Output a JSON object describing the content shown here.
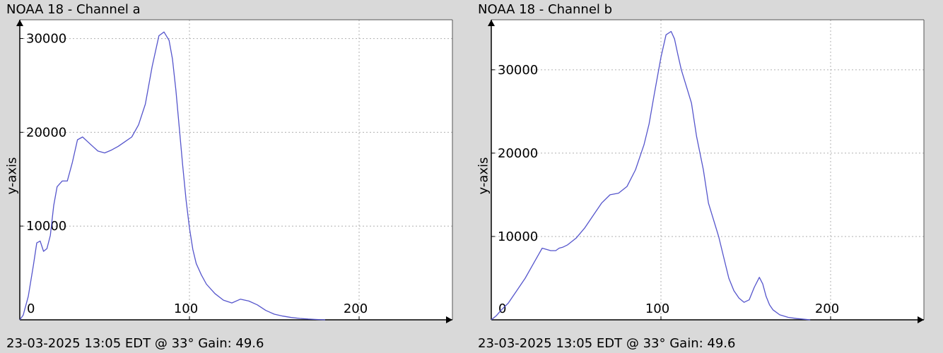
{
  "chart_data": [
    {
      "type": "line",
      "title": "NOAA 18 - Channel a",
      "ylabel": "y-axis",
      "xlabel": "",
      "footer": "23-03-2025 13:05 EDT @ 33° Gain: 49.6",
      "xlim": [
        0,
        255
      ],
      "ylim": [
        0,
        32000
      ],
      "xticks": [
        0,
        100,
        200
      ],
      "yticks": [
        10000,
        20000,
        30000
      ],
      "grid": true,
      "line_color": "#5555cc",
      "x": [
        0,
        2,
        5,
        8,
        10,
        12,
        14,
        16,
        18,
        20,
        22,
        25,
        28,
        31,
        34,
        37,
        40,
        43,
        46,
        50,
        54,
        58,
        62,
        66,
        70,
        74,
        78,
        82,
        85,
        88,
        90,
        92,
        94,
        96,
        98,
        100,
        102,
        104,
        107,
        110,
        115,
        120,
        125,
        130,
        135,
        140,
        145,
        150,
        155,
        160,
        165,
        170,
        175,
        180
      ],
      "series": [
        {
          "values": [
            0,
            500,
            2500,
            5800,
            8200,
            8400,
            7300,
            7600,
            9000,
            12200,
            14200,
            14800,
            14800,
            16800,
            19200,
            19500,
            19000,
            18500,
            18000,
            17800,
            18100,
            18500,
            19000,
            19500,
            20800,
            23000,
            27000,
            30300,
            30700,
            29800,
            27800,
            24500,
            20500,
            16500,
            12800,
            9800,
            7500,
            6000,
            4800,
            3800,
            2800,
            2100,
            1800,
            2200,
            2000,
            1600,
            1000,
            600,
            400,
            250,
            150,
            80,
            40,
            0
          ]
        }
      ]
    },
    {
      "type": "line",
      "title": "NOAA 18 - Channel b",
      "ylabel": "y-axis",
      "xlabel": "",
      "footer": "23-03-2025 13:05 EDT @ 33° Gain: 49.6",
      "xlim": [
        0,
        255
      ],
      "ylim": [
        0,
        36000
      ],
      "xticks": [
        0,
        100,
        200
      ],
      "yticks": [
        10000,
        20000,
        30000
      ],
      "grid": true,
      "line_color": "#5555cc",
      "x": [
        0,
        3,
        6,
        10,
        15,
        20,
        25,
        30,
        35,
        38,
        40,
        42,
        45,
        50,
        55,
        60,
        65,
        70,
        75,
        80,
        85,
        88,
        90,
        93,
        96,
        100,
        103,
        106,
        108,
        110,
        112,
        115,
        118,
        121,
        125,
        128,
        131,
        134,
        137,
        140,
        143,
        146,
        149,
        152,
        155,
        158,
        160,
        162,
        164,
        166,
        170,
        175,
        180,
        185,
        188
      ],
      "series": [
        {
          "values": [
            0,
            500,
            1200,
            2000,
            3500,
            5000,
            6800,
            8600,
            8300,
            8300,
            8600,
            8700,
            9000,
            9800,
            11000,
            12500,
            14000,
            15000,
            15200,
            16000,
            18000,
            19800,
            21000,
            23500,
            27000,
            31500,
            34200,
            34600,
            33700,
            31800,
            30000,
            28000,
            26000,
            22000,
            18000,
            14000,
            12000,
            10000,
            7500,
            5000,
            3500,
            2600,
            2100,
            2400,
            3900,
            5100,
            4300,
            2800,
            1800,
            1200,
            600,
            300,
            150,
            60,
            0
          ]
        }
      ]
    }
  ]
}
